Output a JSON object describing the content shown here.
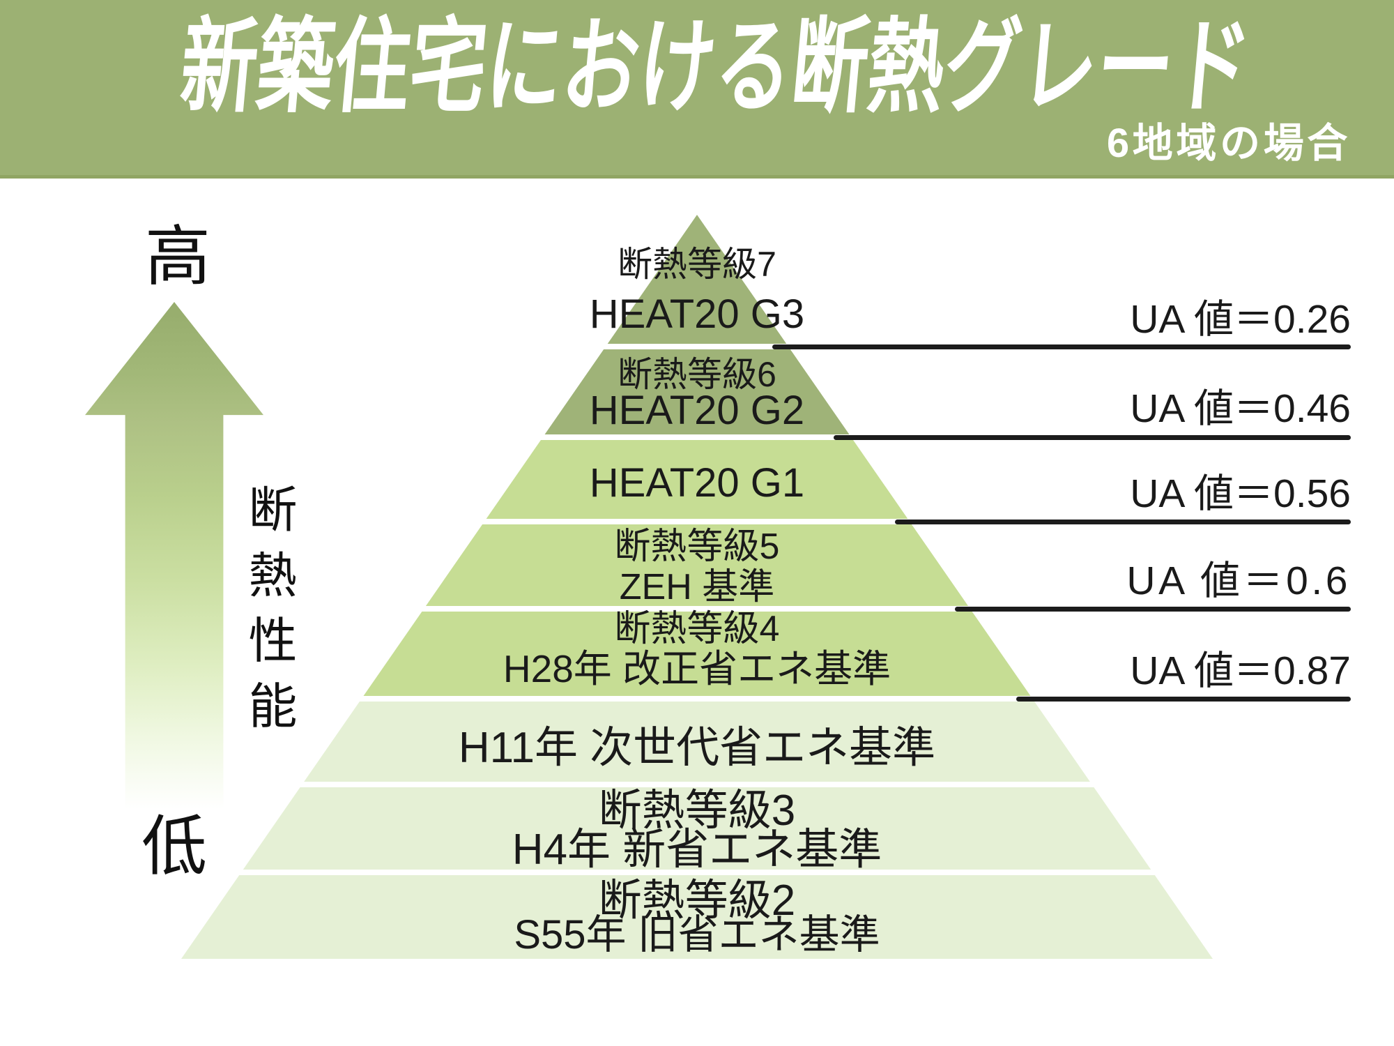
{
  "banner": {
    "title": "新築住宅における断熱グレード",
    "subtitle": "6地域の場合",
    "background_color": "#9cb173",
    "text_color": "#ffffff"
  },
  "axis": {
    "high": "高",
    "low": "低",
    "label": "断熱性能"
  },
  "pyramid": {
    "colors": {
      "top": "#9fb378",
      "middle": "#c6dd94",
      "bottom": "#e5f0d5",
      "line": "#1c1c1c"
    },
    "levels": [
      {
        "line1": "断熱等級7",
        "line2": "HEAT20 G3",
        "ua": "UA 値＝0.26"
      },
      {
        "line1": "断熱等級6",
        "line2": "HEAT20 G2",
        "ua": "UA 値＝0.46"
      },
      {
        "line1": "HEAT20 G1",
        "line2": "",
        "ua": "UA 値＝0.56"
      },
      {
        "line1": "断熱等級5",
        "line2": "ZEH 基準",
        "ua": "UA 値＝0.6"
      },
      {
        "line1": "断熱等級4",
        "line2": "H28年 改正省エネ基準",
        "ua": "UA 値＝0.87"
      },
      {
        "line1": "H11年 次世代省エネ基準",
        "line2": "",
        "ua": ""
      },
      {
        "line1": "断熱等級3",
        "line2": "H4年 新省エネ基準",
        "ua": ""
      },
      {
        "line1": "断熱等級2",
        "line2": "S55年 旧省エネ基準",
        "ua": ""
      }
    ]
  }
}
